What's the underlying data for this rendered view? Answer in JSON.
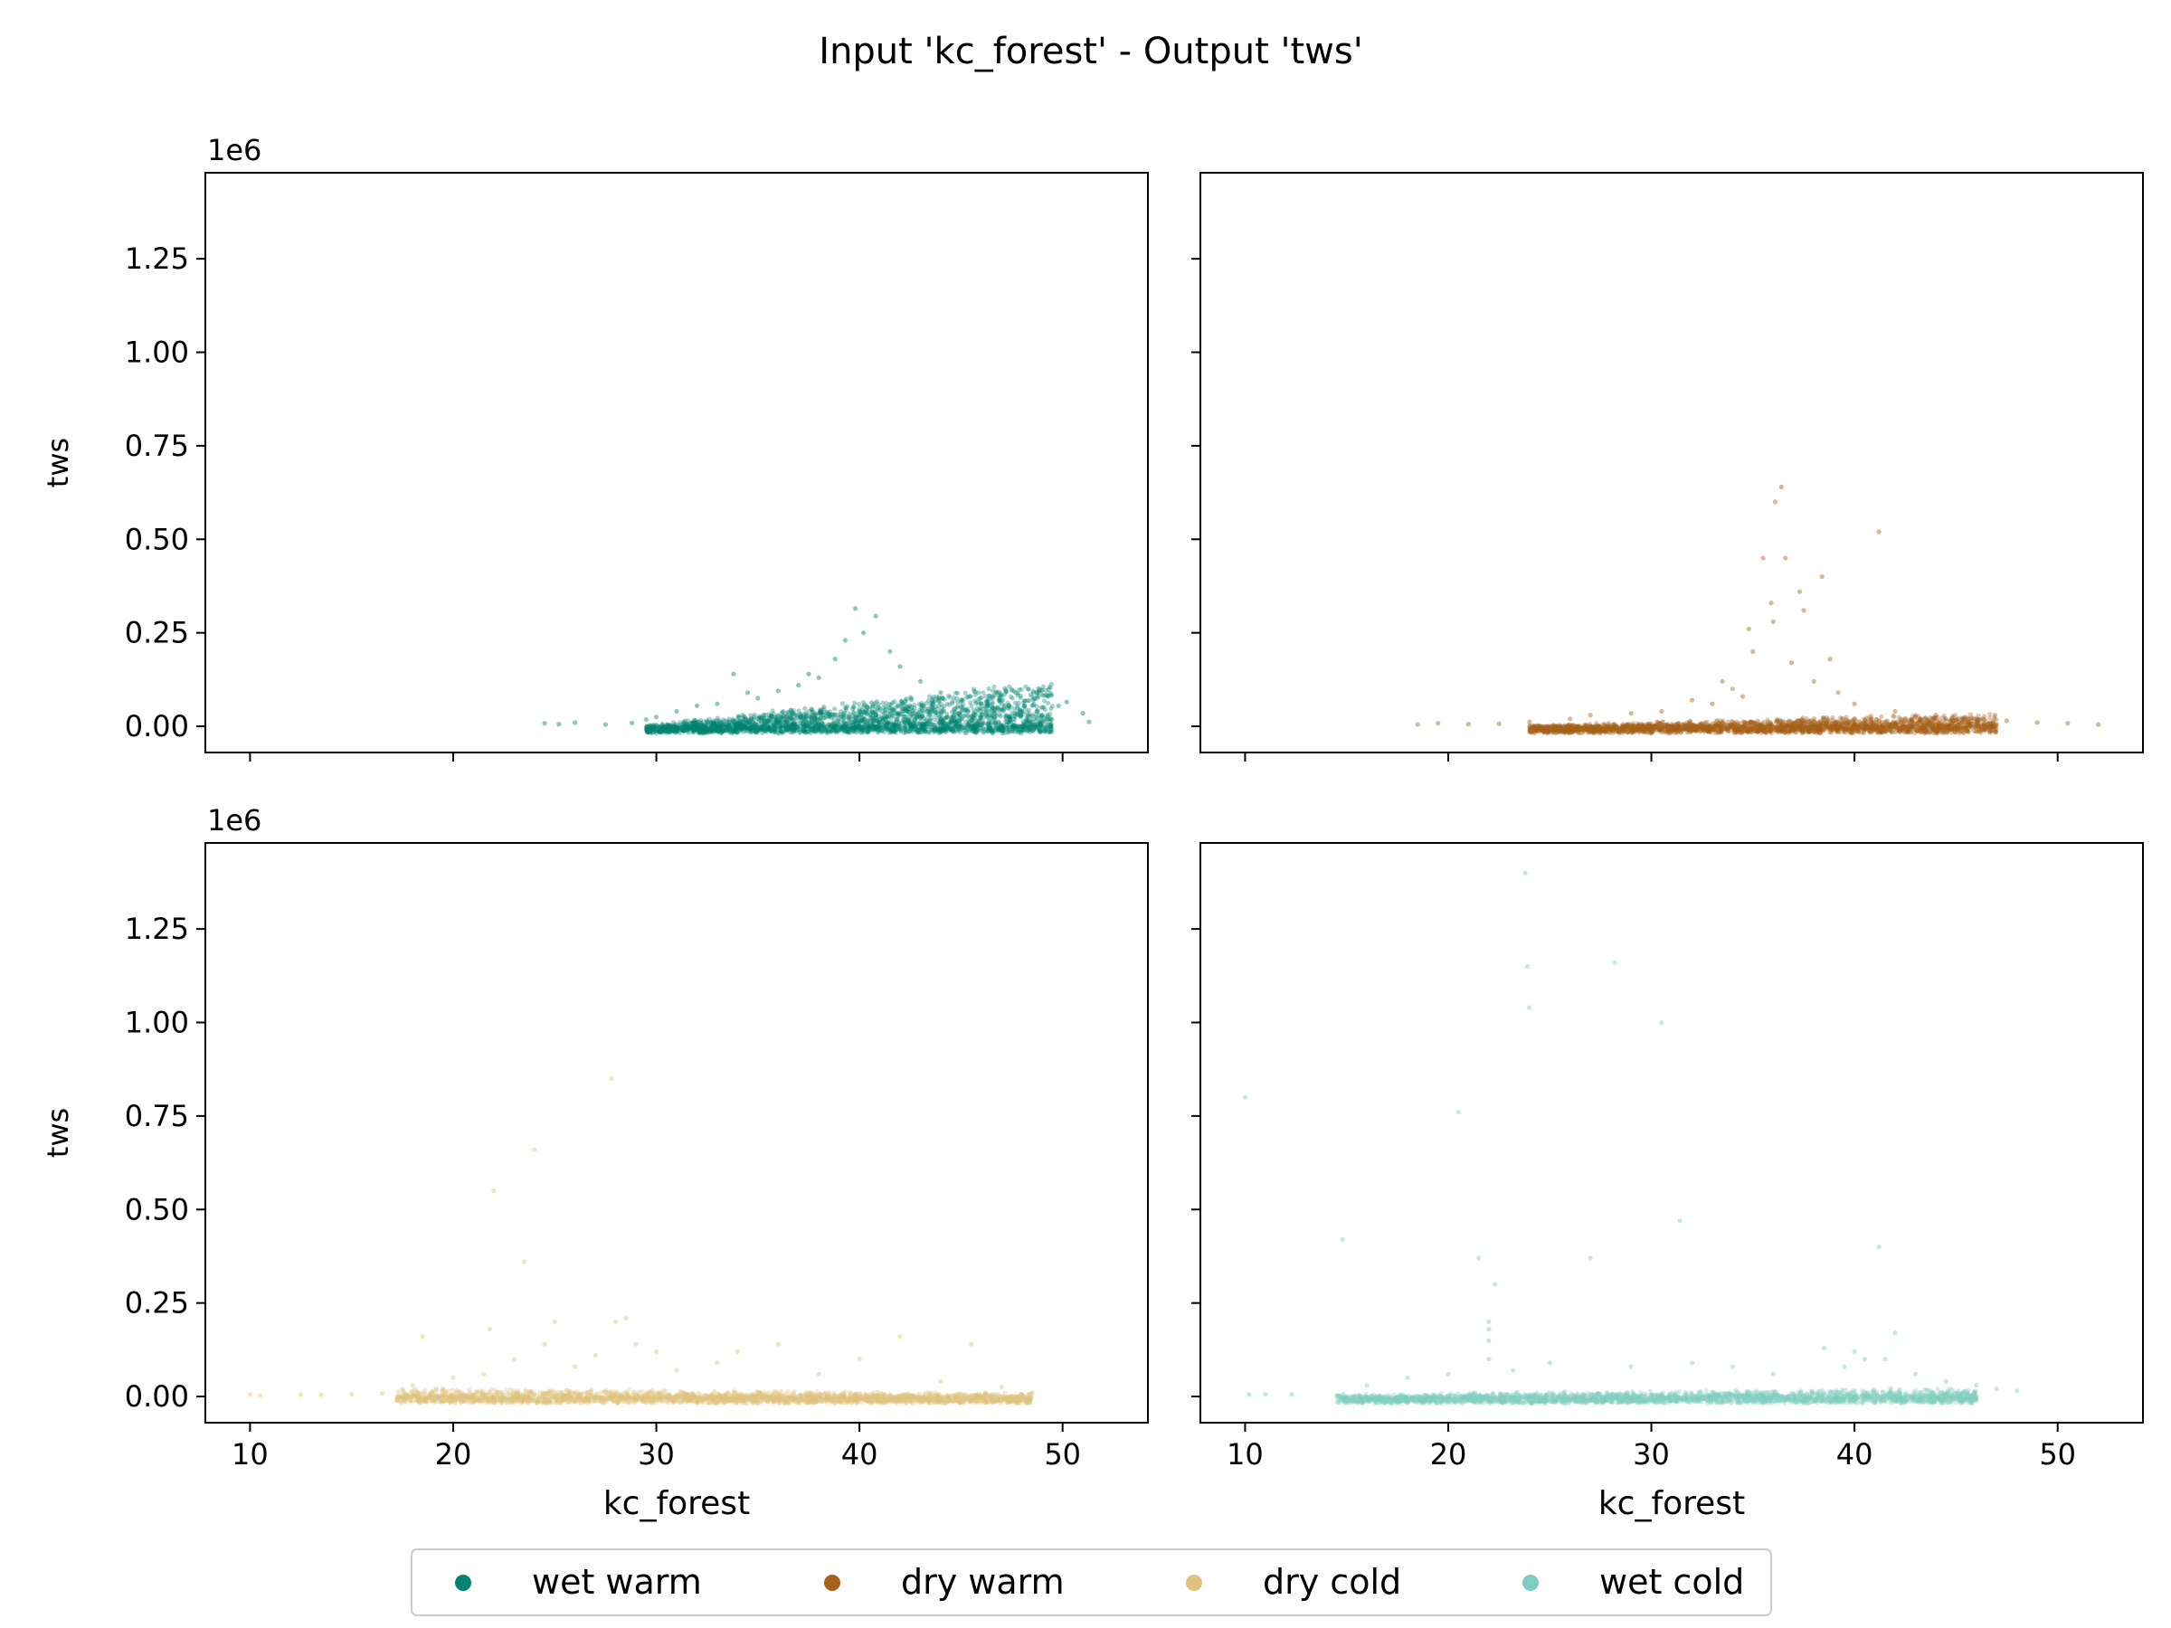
{
  "title": "Input 'kc_forest' - Output 'tws'",
  "colors": {
    "wet_warm": "#018571",
    "dry_warm": "#a6611a",
    "dry_cold": "#dfc27d",
    "wet_cold": "#80cdc1"
  },
  "legend": {
    "placement": "bottom-center",
    "items": [
      {
        "label": "wet warm",
        "color": "#018571"
      },
      {
        "label": "dry warm",
        "color": "#a6611a"
      },
      {
        "label": "dry cold",
        "color": "#dfc27d"
      },
      {
        "label": "wet cold",
        "color": "#80cdc1"
      }
    ]
  },
  "chart_data": [
    {
      "type": "scatter",
      "series_name": "wet warm",
      "color": "#018571",
      "xlabel": "",
      "ylabel": "tws",
      "offset_label": "1e6",
      "xlim": [
        7.8,
        54.2
      ],
      "ylim": [
        -70000,
        1480000
      ],
      "xticks": [
        10,
        20,
        30,
        40,
        50
      ],
      "xtick_labels_shown": false,
      "yticks": [
        0,
        250000,
        500000,
        750000,
        1000000,
        1250000
      ],
      "ytick_labels": [
        "0.00",
        "0.25",
        "0.50",
        "0.75",
        "1.00",
        "1.25"
      ],
      "grid": false,
      "points": [
        [
          24.5,
          8000
        ],
        [
          25.2,
          6000
        ],
        [
          26,
          10000
        ],
        [
          27.5,
          5000
        ],
        [
          28.8,
          9000
        ],
        [
          29.5,
          18000
        ],
        [
          30,
          25000
        ],
        [
          31,
          40000
        ],
        [
          32,
          55000
        ],
        [
          33,
          60000
        ],
        [
          33.8,
          140000
        ],
        [
          34.5,
          90000
        ],
        [
          35,
          75000
        ],
        [
          36,
          95000
        ],
        [
          37,
          110000
        ],
        [
          37.5,
          140000
        ],
        [
          38,
          130000
        ],
        [
          38.8,
          180000
        ],
        [
          39.3,
          230000
        ],
        [
          39.8,
          315000
        ],
        [
          40.2,
          250000
        ],
        [
          40.8,
          295000
        ],
        [
          41.5,
          200000
        ],
        [
          42,
          160000
        ],
        [
          43,
          120000
        ],
        [
          44,
          90000
        ],
        [
          45,
          70000
        ],
        [
          46,
          60000
        ],
        [
          47,
          45000
        ],
        [
          48,
          40000
        ],
        [
          48.5,
          55000
        ],
        [
          49,
          30000
        ],
        [
          49.8,
          55000
        ],
        [
          50.2,
          65000
        ],
        [
          51,
          35000
        ],
        [
          51.3,
          12000
        ]
      ],
      "cloud": [
        {
          "x": [
            29.5,
            49.5
          ],
          "y_max": [
            5000,
            125000
          ]
        }
      ]
    },
    {
      "type": "scatter",
      "series_name": "dry warm",
      "color": "#a6611a",
      "xlabel": "",
      "ylabel": "",
      "offset_label": "",
      "xlim": [
        7.8,
        54.2
      ],
      "ylim": [
        -70000,
        1480000
      ],
      "xticks": [
        10,
        20,
        30,
        40,
        50
      ],
      "xtick_labels_shown": false,
      "yticks": [
        0,
        250000,
        500000,
        750000,
        1000000,
        1250000
      ],
      "ytick_labels_shown": false,
      "grid": false,
      "points": [
        [
          18.5,
          5000
        ],
        [
          19.5,
          8000
        ],
        [
          21,
          6000
        ],
        [
          22.5,
          7000
        ],
        [
          24,
          12000
        ],
        [
          26,
          20000
        ],
        [
          27,
          30000
        ],
        [
          29,
          35000
        ],
        [
          30.5,
          40000
        ],
        [
          32,
          70000
        ],
        [
          33,
          60000
        ],
        [
          33.5,
          120000
        ],
        [
          34,
          100000
        ],
        [
          34.5,
          80000
        ],
        [
          35,
          200000
        ],
        [
          34.8,
          260000
        ],
        [
          35.5,
          450000
        ],
        [
          35.9,
          330000
        ],
        [
          36,
          280000
        ],
        [
          36.1,
          600000
        ],
        [
          36.4,
          640000
        ],
        [
          36.6,
          450000
        ],
        [
          36.9,
          170000
        ],
        [
          37.3,
          360000
        ],
        [
          37.5,
          310000
        ],
        [
          38,
          120000
        ],
        [
          38.4,
          400000
        ],
        [
          38.8,
          180000
        ],
        [
          39.2,
          90000
        ],
        [
          40,
          60000
        ],
        [
          41.2,
          520000
        ],
        [
          42,
          40000
        ],
        [
          44,
          30000
        ],
        [
          46,
          20000
        ],
        [
          47.5,
          15000
        ],
        [
          49,
          10000
        ],
        [
          50.5,
          8000
        ],
        [
          52,
          5000
        ]
      ],
      "cloud": [
        {
          "x": [
            24,
            47
          ],
          "y_max": [
            4000,
            38000
          ]
        }
      ]
    },
    {
      "type": "scatter",
      "series_name": "dry cold",
      "color": "#dfc27d",
      "xlabel": "kc_forest",
      "ylabel": "tws",
      "offset_label": "1e6",
      "xlim": [
        7.8,
        54.2
      ],
      "ylim": [
        -70000,
        1480000
      ],
      "xticks": [
        10,
        20,
        30,
        40,
        50
      ],
      "xtick_labels": [
        "10",
        "20",
        "30",
        "40",
        "50"
      ],
      "yticks": [
        0,
        250000,
        500000,
        750000,
        1000000,
        1250000
      ],
      "ytick_labels": [
        "0.00",
        "0.25",
        "0.50",
        "0.75",
        "1.00",
        "1.25"
      ],
      "grid": false,
      "points": [
        [
          10,
          5000
        ],
        [
          10.5,
          3000
        ],
        [
          12.5,
          5000
        ],
        [
          13.5,
          4000
        ],
        [
          15,
          6000
        ],
        [
          16.5,
          8000
        ],
        [
          17.5,
          20000
        ],
        [
          18,
          30000
        ],
        [
          18.5,
          160000
        ],
        [
          20,
          50000
        ],
        [
          21.5,
          60000
        ],
        [
          21.8,
          180000
        ],
        [
          22,
          550000
        ],
        [
          23,
          100000
        ],
        [
          23.5,
          360000
        ],
        [
          24,
          660000
        ],
        [
          24.5,
          140000
        ],
        [
          25,
          200000
        ],
        [
          26,
          80000
        ],
        [
          27,
          110000
        ],
        [
          27.8,
          850000
        ],
        [
          28,
          200000
        ],
        [
          28.5,
          210000
        ],
        [
          29,
          140000
        ],
        [
          30,
          120000
        ],
        [
          31,
          70000
        ],
        [
          33,
          90000
        ],
        [
          34,
          120000
        ],
        [
          36,
          140000
        ],
        [
          38,
          60000
        ],
        [
          40,
          100000
        ],
        [
          42,
          160000
        ],
        [
          44,
          40000
        ],
        [
          45.5,
          140000
        ],
        [
          47,
          25000
        ],
        [
          48.5,
          10000
        ]
      ],
      "cloud": [
        {
          "x": [
            17.2,
            48.5
          ],
          "y_max": [
            25000,
            10000
          ]
        }
      ]
    },
    {
      "type": "scatter",
      "series_name": "wet cold",
      "color": "#80cdc1",
      "xlabel": "kc_forest",
      "ylabel": "",
      "offset_label": "",
      "xlim": [
        7.8,
        54.2
      ],
      "ylim": [
        -70000,
        1480000
      ],
      "xticks": [
        10,
        20,
        30,
        40,
        50
      ],
      "xtick_labels": [
        "10",
        "20",
        "30",
        "40",
        "50"
      ],
      "yticks": [
        0,
        250000,
        500000,
        750000,
        1000000,
        1250000
      ],
      "ytick_labels_shown": false,
      "grid": false,
      "points": [
        [
          10,
          800000
        ],
        [
          10.2,
          5000
        ],
        [
          11,
          6000
        ],
        [
          12.3,
          5000
        ],
        [
          14.8,
          420000
        ],
        [
          16,
          30000
        ],
        [
          18,
          50000
        ],
        [
          20,
          60000
        ],
        [
          20.5,
          760000
        ],
        [
          21.5,
          370000
        ],
        [
          22,
          200000
        ],
        [
          22,
          150000
        ],
        [
          22,
          100000
        ],
        [
          22,
          180000
        ],
        [
          22.3,
          300000
        ],
        [
          23.2,
          70000
        ],
        [
          23.8,
          1400000
        ],
        [
          23.9,
          1150000
        ],
        [
          24,
          1040000
        ],
        [
          25,
          90000
        ],
        [
          27,
          370000
        ],
        [
          28.2,
          1160000
        ],
        [
          29,
          80000
        ],
        [
          30.5,
          1000000
        ],
        [
          31.4,
          470000
        ],
        [
          32,
          90000
        ],
        [
          34,
          80000
        ],
        [
          36,
          60000
        ],
        [
          38.5,
          130000
        ],
        [
          39.5,
          80000
        ],
        [
          40,
          120000
        ],
        [
          40.5,
          100000
        ],
        [
          41.2,
          400000
        ],
        [
          41.5,
          100000
        ],
        [
          42,
          170000
        ],
        [
          43,
          60000
        ],
        [
          44.5,
          40000
        ],
        [
          46,
          30000
        ],
        [
          47,
          20000
        ],
        [
          48,
          15000
        ]
      ],
      "cloud": [
        {
          "x": [
            14.5,
            46
          ],
          "y_max": [
            8000,
            25000
          ]
        }
      ]
    }
  ]
}
